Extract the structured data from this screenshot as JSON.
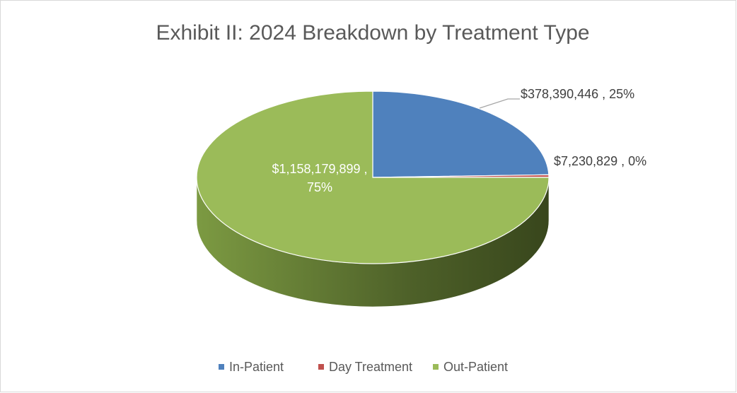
{
  "chart_data": {
    "type": "pie3d",
    "title": "Exhibit II: 2024 Breakdown by Treatment Type",
    "categories": [
      "In-Patient",
      "Day Treatment",
      "Out-Patient"
    ],
    "values": [
      378390446,
      7230829,
      1158179899
    ],
    "value_labels": [
      "$378,390,446 , 25%",
      "$7,230,829 , 0%",
      "$1,158,179,899 , 75%"
    ],
    "colors": [
      "#4f81bd",
      "#c0504d",
      "#9bbb59"
    ],
    "legend": "bottom"
  }
}
